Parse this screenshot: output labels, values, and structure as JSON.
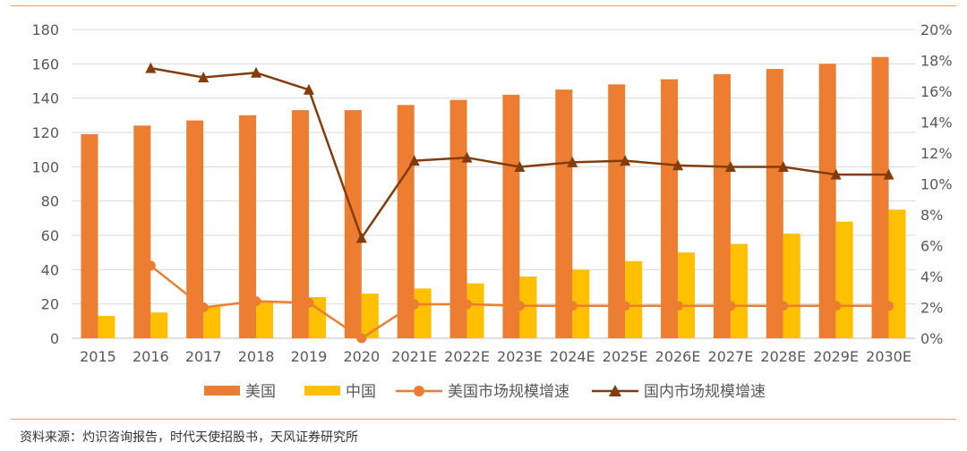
{
  "chart_data": {
    "type": "bar",
    "categories": [
      "2015",
      "2016",
      "2017",
      "2018",
      "2019",
      "2020",
      "2021E",
      "2022E",
      "2023E",
      "2024E",
      "2025E",
      "2026E",
      "2027E",
      "2028E",
      "2029E",
      "2030E"
    ],
    "series": [
      {
        "name": "美国",
        "kind": "bar",
        "axis": "left",
        "color": "#ED7D31",
        "values": [
          119,
          124,
          127,
          130,
          133,
          133,
          136,
          139,
          142,
          145,
          148,
          151,
          154,
          157,
          160,
          164
        ]
      },
      {
        "name": "中国",
        "kind": "bar",
        "axis": "left",
        "color": "#FFC000",
        "values": [
          13,
          15,
          19,
          22,
          24,
          26,
          29,
          32,
          36,
          40,
          45,
          50,
          55,
          61,
          68,
          75
        ]
      },
      {
        "name": "美国市场规模增速",
        "kind": "line",
        "marker": "circle",
        "axis": "right",
        "color": "#ED7D31",
        "values": [
          null,
          4.7,
          2.0,
          2.4,
          2.3,
          0.0,
          2.2,
          2.2,
          2.1,
          2.1,
          2.1,
          2.1,
          2.1,
          2.1,
          2.1,
          2.1
        ]
      },
      {
        "name": "国内市场规模增速",
        "kind": "line",
        "marker": "triangle",
        "axis": "right",
        "color": "#843C0C",
        "values": [
          null,
          17.5,
          16.9,
          17.2,
          16.1,
          6.5,
          11.5,
          11.7,
          11.1,
          11.4,
          11.5,
          11.2,
          11.1,
          11.1,
          10.6,
          10.6
        ]
      }
    ],
    "ylim": [
      0,
      180
    ],
    "yticks": [
      0,
      20,
      40,
      60,
      80,
      100,
      120,
      140,
      160,
      180
    ],
    "y2lim": [
      0,
      20
    ],
    "y2ticks": [
      "0%",
      "2%",
      "4%",
      "6%",
      "8%",
      "10%",
      "12%",
      "14%",
      "16%",
      "18%",
      "20%"
    ],
    "grid": true,
    "legend_position": "bottom"
  },
  "source_text": "资料来源：灼识咨询报告，时代天使招股书，天风证券研究所"
}
